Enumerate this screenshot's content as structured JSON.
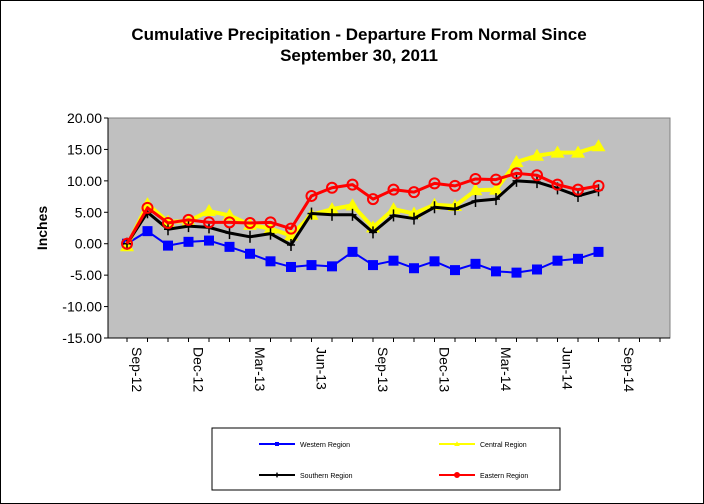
{
  "chart_data": {
    "type": "line",
    "title_lines": [
      "Cumulative Precipitation - Departure From Normal Since",
      "September 30, 2011"
    ],
    "xlabel": "",
    "ylabel": "Inches",
    "ylim": [
      -15,
      20
    ],
    "yticks": [
      20,
      15,
      10,
      5,
      0,
      -5,
      -10,
      -15
    ],
    "ytick_labels": [
      "20.00",
      "15.00",
      "10.00",
      "5.00",
      "0.00",
      "-5.00",
      "-10.00",
      "-15.00"
    ],
    "x_tick_labels": [
      "Sep-12",
      "Dec-12",
      "Mar-13",
      "Jun-13",
      "Sep-13",
      "Dec-13",
      "Mar-14",
      "Jun-14",
      "Sep-14"
    ],
    "x_months": [
      "Sep-12",
      "Oct-12",
      "Nov-12",
      "Dec-12",
      "Jan-13",
      "Feb-13",
      "Mar-13",
      "Apr-13",
      "May-13",
      "Jun-13",
      "Jul-13",
      "Aug-13",
      "Sep-13",
      "Oct-13",
      "Nov-13",
      "Dec-13",
      "Jan-14",
      "Feb-14",
      "Mar-14",
      "Apr-14",
      "May-14",
      "Jun-14",
      "Jul-14",
      "Aug-14"
    ],
    "grid": false,
    "legend_position": "bottom",
    "series": [
      {
        "name": "Western Region",
        "color": "#0000ff",
        "marker": "square",
        "values": [
          0.0,
          2.0,
          -0.3,
          0.3,
          0.5,
          -0.5,
          -1.6,
          -2.8,
          -3.7,
          -3.4,
          -3.6,
          -1.3,
          -3.4,
          -2.7,
          -3.9,
          -2.8,
          -4.2,
          -3.2,
          -4.4,
          -4.6,
          -4.1,
          -2.7,
          -2.4,
          -1.3
        ]
      },
      {
        "name": "Central Region",
        "color": "#ffff00",
        "marker": "triangle",
        "values": [
          -0.4,
          6.3,
          3.5,
          3.6,
          5.2,
          4.5,
          3.0,
          2.4,
          1.3,
          4.6,
          5.5,
          6.1,
          2.6,
          5.5,
          4.8,
          6.2,
          6.0,
          8.5,
          8.6,
          13.0,
          14.0,
          14.5,
          14.5,
          15.5
        ]
      },
      {
        "name": "Southern Region",
        "color": "#000000",
        "marker": "plus",
        "values": [
          0.0,
          5.0,
          2.3,
          2.8,
          2.6,
          1.7,
          1.1,
          1.6,
          -0.2,
          4.8,
          4.6,
          4.6,
          1.8,
          4.5,
          4.0,
          5.8,
          5.5,
          6.8,
          7.1,
          10.0,
          9.8,
          8.8,
          7.6,
          8.5
        ]
      },
      {
        "name": "Eastern Region",
        "color": "#ff0000",
        "marker": "circle",
        "values": [
          0.0,
          5.7,
          3.3,
          3.8,
          3.4,
          3.4,
          3.3,
          3.4,
          2.4,
          7.6,
          8.9,
          9.4,
          7.1,
          8.6,
          8.2,
          9.6,
          9.2,
          10.3,
          10.2,
          11.2,
          10.9,
          9.4,
          8.6,
          9.2
        ]
      }
    ]
  }
}
